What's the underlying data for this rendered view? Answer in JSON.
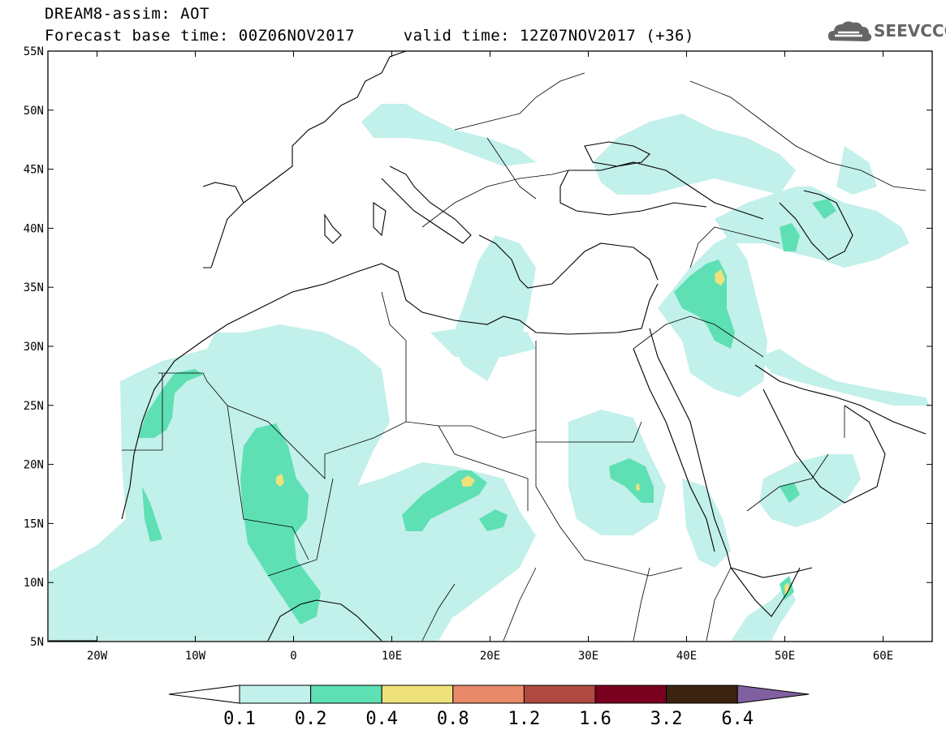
{
  "header": {
    "title_line_1": "DREAM8-assim: AOT",
    "title_line_2": "Forecast base time: 00Z06NOV2017     valid time: 12Z07NOV2017 (+36)",
    "logo_text": "SEEVCCC",
    "logo_icon": "cloud-icon"
  },
  "map": {
    "lat_labels": [
      "55N",
      "50N",
      "45N",
      "40N",
      "35N",
      "30N",
      "25N",
      "20N",
      "15N",
      "10N",
      "5N"
    ],
    "lon_labels": [
      "20W",
      "10W",
      "0",
      "10E",
      "20E",
      "30E",
      "40E",
      "50E",
      "60E"
    ],
    "lat_values": [
      55,
      50,
      45,
      40,
      35,
      30,
      25,
      20,
      15,
      10,
      5
    ],
    "lon_values": [
      -20,
      -10,
      0,
      10,
      20,
      30,
      40,
      50,
      60
    ],
    "lon_range": [
      -25,
      65
    ],
    "lat_range": [
      5,
      55
    ],
    "ocean_color": "#ffffff",
    "border_color": "#000000"
  },
  "legend": {
    "labels": [
      "0.1",
      "0.2",
      "0.4",
      "0.8",
      "1.2",
      "1.6",
      "3.2",
      "6.4"
    ],
    "colors": [
      "#ffffff",
      "#c2f0ea",
      "#5ee0b4",
      "#f0e27a",
      "#e8896a",
      "#b04a40",
      "#7a0020",
      "#3a2410",
      "#8060a0"
    ]
  }
}
